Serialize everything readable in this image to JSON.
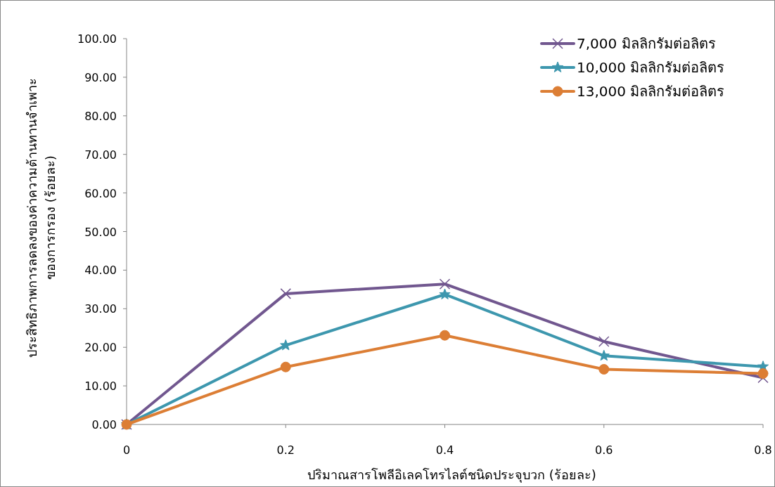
{
  "chart_data": {
    "type": "line",
    "xlabel": "ปริมาณสารโพลีอิเลคโทรไลต์ชนิดประจุบวก (ร้อยละ)",
    "ylabel": "ประสิทธิภาพการลดลงของค่าความต้านทานจำเพาะ\nของการกรอง (ร้อยละ)",
    "x": [
      0,
      0.2,
      0.4,
      0.6,
      0.8
    ],
    "xlim": [
      0,
      0.8
    ],
    "xticks": [
      0,
      0.2,
      0.4,
      0.6,
      0.8
    ],
    "ylim": [
      0,
      100
    ],
    "yticks": [
      {
        "value": 0,
        "label": "0.00"
      },
      {
        "value": 10,
        "label": "10.00"
      },
      {
        "value": 20,
        "label": "20.00"
      },
      {
        "value": 30,
        "label": "30.00"
      },
      {
        "value": 40,
        "label": "40.00"
      },
      {
        "value": 50,
        "label": "50.00"
      },
      {
        "value": 60,
        "label": "60.00"
      },
      {
        "value": 70,
        "label": "70.00"
      },
      {
        "value": 80,
        "label": "80.00"
      },
      {
        "value": 90,
        "label": "90.00"
      },
      {
        "value": 100,
        "label": "100.00"
      }
    ],
    "grid": false,
    "legend": "top right",
    "series": [
      {
        "name": "7,000 มิลลิกรัมต่อลิตร",
        "color": "#71578f",
        "marker": "cross",
        "values": [
          0,
          33.9,
          36.4,
          21.5,
          12.1
        ]
      },
      {
        "name": "10,000 มิลลิกรัมต่อลิตร",
        "color": "#3d97ae",
        "marker": "star",
        "values": [
          0,
          20.5,
          33.7,
          17.8,
          15.0
        ]
      },
      {
        "name": "13,000 มิลลิกรัมต่อลิตร",
        "color": "#dc7e35",
        "marker": "circle",
        "values": [
          0,
          14.9,
          23.1,
          14.3,
          13.2
        ]
      }
    ]
  }
}
